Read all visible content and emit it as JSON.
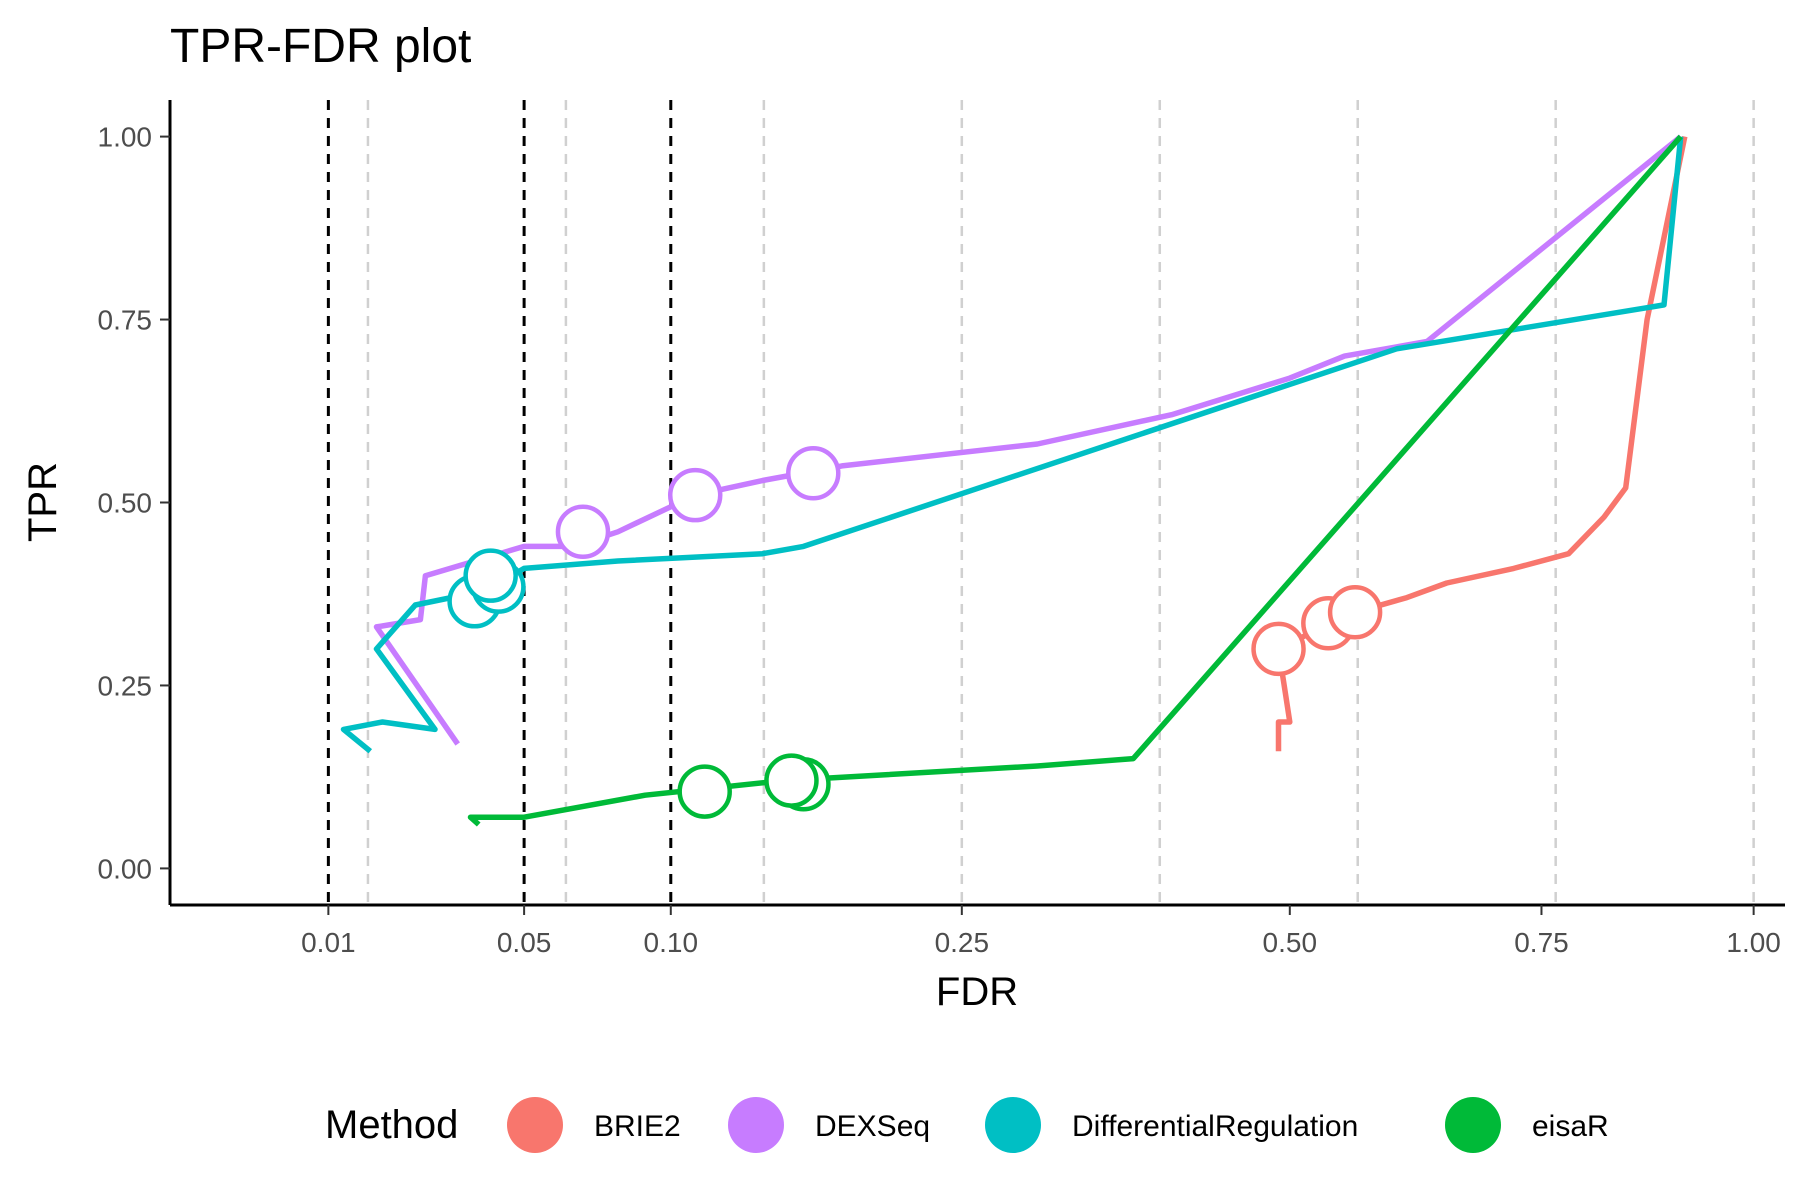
{
  "chart_data": {
    "type": "line",
    "title": "TPR-FDR plot",
    "xlabel": "FDR",
    "ylabel": "TPR",
    "x_scale": "sqrt",
    "xlim": [
      0,
      1.04
    ],
    "ylim": [
      -0.05,
      1.05
    ],
    "x_ticks": [
      0.01,
      0.05,
      0.1,
      0.25,
      0.5,
      0.75,
      1.0
    ],
    "x_tick_labels": [
      "0.01",
      "0.05",
      "0.10",
      "0.25",
      "0.50",
      "0.75",
      "1.00"
    ],
    "y_ticks": [
      0,
      0.25,
      0.5,
      0.75,
      1.0
    ],
    "y_tick_labels": [
      "0.00",
      "0.25",
      "0.50",
      "0.75",
      "1.00"
    ],
    "threshold_lines": [
      0.01,
      0.05,
      0.1
    ],
    "grid": "vertical dashed",
    "legend": {
      "title": "Method",
      "position": "bottom"
    },
    "series": [
      {
        "name": "BRIE2",
        "color": "#F8766D",
        "points": [
          [
            0.49,
            0.16
          ],
          [
            0.49,
            0.2
          ],
          [
            0.5,
            0.2
          ],
          [
            0.495,
            0.25
          ],
          [
            0.49,
            0.3
          ],
          [
            0.53,
            0.33
          ],
          [
            0.56,
            0.35
          ],
          [
            0.61,
            0.37
          ],
          [
            0.65,
            0.39
          ],
          [
            0.72,
            0.41
          ],
          [
            0.78,
            0.43
          ],
          [
            0.82,
            0.48
          ],
          [
            0.845,
            0.52
          ],
          [
            0.87,
            0.75
          ],
          [
            0.915,
            1.0
          ]
        ],
        "markers": [
          [
            0.49,
            0.3
          ],
          [
            0.535,
            0.335
          ],
          [
            0.56,
            0.35
          ]
        ]
      },
      {
        "name": "DEXSeq",
        "color": "#C77CFF",
        "points": [
          [
            0.033,
            0.17
          ],
          [
            0.017,
            0.33
          ],
          [
            0.025,
            0.34
          ],
          [
            0.026,
            0.4
          ],
          [
            0.05,
            0.44
          ],
          [
            0.065,
            0.44
          ],
          [
            0.08,
            0.46
          ],
          [
            0.11,
            0.51
          ],
          [
            0.14,
            0.53
          ],
          [
            0.18,
            0.55
          ],
          [
            0.3,
            0.58
          ],
          [
            0.4,
            0.62
          ],
          [
            0.5,
            0.67
          ],
          [
            0.55,
            0.7
          ],
          [
            0.63,
            0.72
          ],
          [
            0.91,
            1.0
          ]
        ],
        "markers": [
          [
            0.068,
            0.46
          ],
          [
            0.11,
            0.51
          ],
          [
            0.165,
            0.54
          ]
        ]
      },
      {
        "name": "DifferentialRegulation",
        "color": "#00BFC4",
        "points": [
          [
            0.016,
            0.16
          ],
          [
            0.012,
            0.19
          ],
          [
            0.018,
            0.2
          ],
          [
            0.028,
            0.19
          ],
          [
            0.017,
            0.3
          ],
          [
            0.024,
            0.36
          ],
          [
            0.04,
            0.38
          ],
          [
            0.05,
            0.41
          ],
          [
            0.08,
            0.42
          ],
          [
            0.14,
            0.43
          ],
          [
            0.16,
            0.44
          ],
          [
            0.6,
            0.71
          ],
          [
            0.89,
            0.77
          ],
          [
            0.91,
            1.0
          ]
        ],
        "markers": [
          [
            0.037,
            0.365
          ],
          [
            0.043,
            0.385
          ],
          [
            0.041,
            0.4
          ]
        ]
      },
      {
        "name": "eisaR",
        "color": "#00BA38",
        "points": [
          [
            0.038,
            0.06
          ],
          [
            0.036,
            0.07
          ],
          [
            0.05,
            0.07
          ],
          [
            0.09,
            0.1
          ],
          [
            0.15,
            0.12
          ],
          [
            0.3,
            0.14
          ],
          [
            0.37,
            0.15
          ],
          [
            0.91,
            1.0
          ]
        ],
        "markers": [
          [
            0.114,
            0.105
          ],
          [
            0.16,
            0.115
          ],
          [
            0.154,
            0.12
          ]
        ]
      }
    ]
  }
}
